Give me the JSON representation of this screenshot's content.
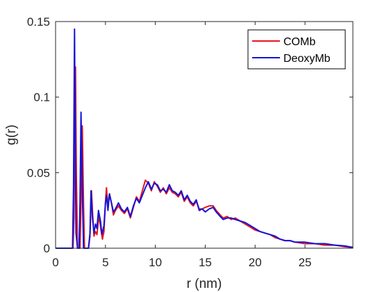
{
  "chart_data": {
    "type": "line",
    "title": "",
    "xlabel": "r (nm)",
    "ylabel": "g(r)",
    "xlim": [
      0,
      29.8
    ],
    "ylim": [
      0,
      0.15
    ],
    "xticks": [
      0,
      5,
      10,
      15,
      20,
      25
    ],
    "xtick_labels": [
      "0",
      "5",
      "10",
      "15",
      "20",
      "25"
    ],
    "yticks": [
      0,
      0.05,
      0.1,
      0.15
    ],
    "ytick_labels": [
      "0",
      "0.05",
      "0.1",
      "0.15"
    ],
    "grid": false,
    "legend_position": "top-right",
    "series": [
      {
        "name": "COMb",
        "color": "#e8141b",
        "points": [
          [
            0,
            0
          ],
          [
            1.5,
            0
          ],
          [
            1.75,
            0
          ],
          [
            1.85,
            0.02
          ],
          [
            1.95,
            0.1
          ],
          [
            2.0,
            0.12
          ],
          [
            2.08,
            0.05
          ],
          [
            2.2,
            0
          ],
          [
            2.45,
            0
          ],
          [
            2.55,
            0.03
          ],
          [
            2.68,
            0.081
          ],
          [
            2.8,
            0.03
          ],
          [
            2.9,
            0
          ],
          [
            3.3,
            0
          ],
          [
            3.45,
            0.008
          ],
          [
            3.6,
            0.038
          ],
          [
            3.72,
            0.022
          ],
          [
            3.85,
            0.008
          ],
          [
            4.0,
            0.011
          ],
          [
            4.15,
            0.009
          ],
          [
            4.35,
            0.022
          ],
          [
            4.55,
            0.012
          ],
          [
            4.7,
            0.006
          ],
          [
            4.85,
            0.011
          ],
          [
            5.0,
            0.03
          ],
          [
            5.1,
            0.04
          ],
          [
            5.25,
            0.028
          ],
          [
            5.4,
            0.036
          ],
          [
            5.6,
            0.03
          ],
          [
            5.8,
            0.022
          ],
          [
            6.0,
            0.025
          ],
          [
            6.3,
            0.028
          ],
          [
            6.6,
            0.025
          ],
          [
            6.9,
            0.023
          ],
          [
            7.2,
            0.026
          ],
          [
            7.5,
            0.02
          ],
          [
            7.8,
            0.027
          ],
          [
            8.1,
            0.034
          ],
          [
            8.4,
            0.031
          ],
          [
            8.7,
            0.038
          ],
          [
            9.0,
            0.045
          ],
          [
            9.3,
            0.043
          ],
          [
            9.6,
            0.038
          ],
          [
            9.9,
            0.044
          ],
          [
            10.2,
            0.041
          ],
          [
            10.5,
            0.037
          ],
          [
            10.8,
            0.04
          ],
          [
            11.1,
            0.036
          ],
          [
            11.4,
            0.04
          ],
          [
            11.7,
            0.037
          ],
          [
            12.0,
            0.036
          ],
          [
            12.3,
            0.034
          ],
          [
            12.6,
            0.037
          ],
          [
            12.9,
            0.031
          ],
          [
            13.2,
            0.034
          ],
          [
            13.5,
            0.03
          ],
          [
            13.8,
            0.028
          ],
          [
            14.1,
            0.031
          ],
          [
            14.4,
            0.026
          ],
          [
            14.7,
            0.026
          ],
          [
            15.0,
            0.027
          ],
          [
            15.4,
            0.028
          ],
          [
            15.8,
            0.028
          ],
          [
            16.1,
            0.025
          ],
          [
            16.5,
            0.022
          ],
          [
            16.8,
            0.02
          ],
          [
            17.2,
            0.021
          ],
          [
            17.6,
            0.019
          ],
          [
            18.0,
            0.02
          ],
          [
            18.5,
            0.018
          ],
          [
            19.0,
            0.016
          ],
          [
            19.5,
            0.014
          ],
          [
            20.0,
            0.012
          ],
          [
            20.5,
            0.011
          ],
          [
            21.0,
            0.01
          ],
          [
            21.5,
            0.009
          ],
          [
            22.0,
            0.007
          ],
          [
            22.5,
            0.006
          ],
          [
            23.0,
            0.005
          ],
          [
            23.5,
            0.005
          ],
          [
            24.0,
            0.004
          ],
          [
            25.0,
            0.003
          ],
          [
            26.0,
            0.003
          ],
          [
            27.0,
            0.002
          ],
          [
            28.0,
            0.002
          ],
          [
            29.0,
            0.001
          ],
          [
            29.8,
            0.0005
          ]
        ]
      },
      {
        "name": "DeoxyMb",
        "color": "#1414d9",
        "points": [
          [
            0,
            0
          ],
          [
            1.5,
            0
          ],
          [
            1.7,
            0
          ],
          [
            1.8,
            0.04
          ],
          [
            1.9,
            0.145
          ],
          [
            1.95,
            0.09
          ],
          [
            2.05,
            0.01
          ],
          [
            2.2,
            0
          ],
          [
            2.35,
            0
          ],
          [
            2.45,
            0.03
          ],
          [
            2.55,
            0.09
          ],
          [
            2.68,
            0.04
          ],
          [
            2.8,
            0
          ],
          [
            3.3,
            0
          ],
          [
            3.45,
            0.01
          ],
          [
            3.55,
            0.038
          ],
          [
            3.7,
            0.02
          ],
          [
            3.85,
            0.01
          ],
          [
            4.0,
            0.016
          ],
          [
            4.15,
            0.013
          ],
          [
            4.3,
            0.025
          ],
          [
            4.5,
            0.018
          ],
          [
            4.65,
            0.009
          ],
          [
            4.85,
            0.015
          ],
          [
            5.0,
            0.03
          ],
          [
            5.1,
            0.035
          ],
          [
            5.25,
            0.025
          ],
          [
            5.4,
            0.036
          ],
          [
            5.6,
            0.03
          ],
          [
            5.8,
            0.024
          ],
          [
            6.0,
            0.026
          ],
          [
            6.3,
            0.03
          ],
          [
            6.6,
            0.026
          ],
          [
            6.9,
            0.024
          ],
          [
            7.2,
            0.027
          ],
          [
            7.5,
            0.021
          ],
          [
            7.8,
            0.028
          ],
          [
            8.1,
            0.033
          ],
          [
            8.4,
            0.03
          ],
          [
            8.7,
            0.035
          ],
          [
            9.0,
            0.04
          ],
          [
            9.3,
            0.044
          ],
          [
            9.6,
            0.039
          ],
          [
            9.9,
            0.043
          ],
          [
            10.2,
            0.042
          ],
          [
            10.5,
            0.038
          ],
          [
            10.8,
            0.039
          ],
          [
            11.1,
            0.037
          ],
          [
            11.4,
            0.042
          ],
          [
            11.7,
            0.038
          ],
          [
            12.0,
            0.037
          ],
          [
            12.3,
            0.035
          ],
          [
            12.6,
            0.038
          ],
          [
            12.9,
            0.032
          ],
          [
            13.2,
            0.035
          ],
          [
            13.5,
            0.031
          ],
          [
            13.8,
            0.029
          ],
          [
            14.1,
            0.032
          ],
          [
            14.4,
            0.025
          ],
          [
            14.7,
            0.026
          ],
          [
            15.0,
            0.024
          ],
          [
            15.4,
            0.026
          ],
          [
            15.8,
            0.027
          ],
          [
            16.1,
            0.024
          ],
          [
            16.5,
            0.021
          ],
          [
            16.8,
            0.019
          ],
          [
            17.2,
            0.02
          ],
          [
            17.6,
            0.02
          ],
          [
            18.0,
            0.019
          ],
          [
            18.5,
            0.018
          ],
          [
            19.0,
            0.017
          ],
          [
            19.5,
            0.015
          ],
          [
            20.0,
            0.013
          ],
          [
            20.5,
            0.011
          ],
          [
            21.0,
            0.01
          ],
          [
            21.5,
            0.009
          ],
          [
            22.0,
            0.008
          ],
          [
            22.5,
            0.006
          ],
          [
            23.0,
            0.005
          ],
          [
            23.5,
            0.005
          ],
          [
            24.0,
            0.004
          ],
          [
            25.0,
            0.004
          ],
          [
            26.0,
            0.003
          ],
          [
            27.0,
            0.003
          ],
          [
            28.0,
            0.002
          ],
          [
            29.0,
            0.0015
          ],
          [
            29.8,
            0.0005
          ]
        ]
      }
    ]
  }
}
